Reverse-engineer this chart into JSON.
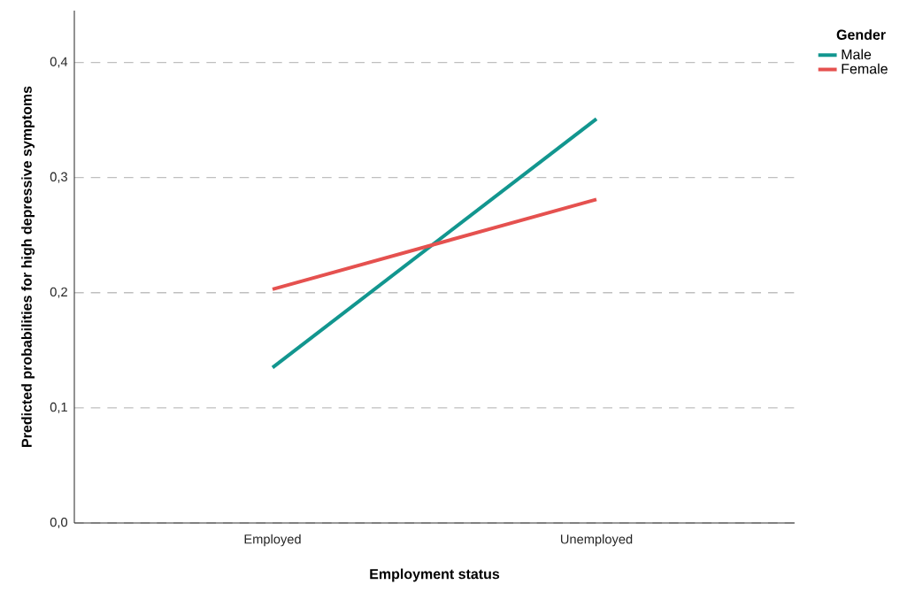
{
  "chart_data": {
    "type": "line",
    "xlabel": "Employment status",
    "ylabel": "Predicted probabilities for high depressive symptoms",
    "legend_title": "Gender",
    "categories": [
      "Employed",
      "Unemployed"
    ],
    "series": [
      {
        "name": "Male",
        "color": "#12968f",
        "values": [
          0.135,
          0.351
        ]
      },
      {
        "name": "Female",
        "color": "#e5514f",
        "values": [
          0.203,
          0.281
        ]
      }
    ],
    "ylim": [
      0,
      0.445
    ],
    "yticks": [
      {
        "value": 0,
        "label": "0,0"
      },
      {
        "value": 0.1,
        "label": "0,1"
      },
      {
        "value": 0.2,
        "label": "0,2"
      },
      {
        "value": 0.3,
        "label": "0,3"
      },
      {
        "value": 0.4,
        "label": "0,4"
      }
    ],
    "grid": "y",
    "legend": "top right",
    "marker": "none",
    "line_style": "solid"
  }
}
